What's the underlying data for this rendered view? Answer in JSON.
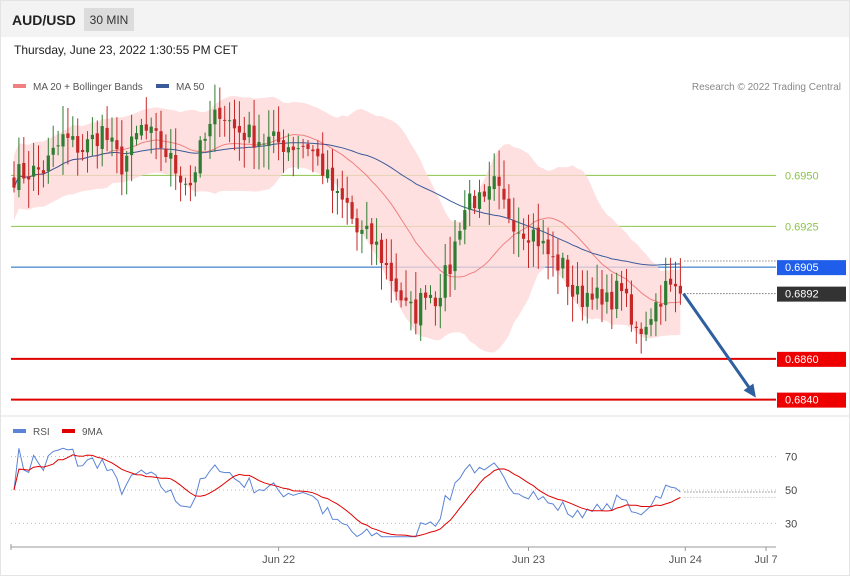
{
  "header": {
    "symbol": "AUD/USD",
    "timeframe": "30 MIN",
    "timestamp": "Thursday, June 23, 2022 1:30:55 PM CET"
  },
  "colors": {
    "candle_up": "#2e7d32",
    "candle_down": "#c62828",
    "bollinger_fill": "#ffd6d6",
    "ma20": "#f08080",
    "ma50": "#3a5a9a",
    "resistance": "#1565c0",
    "support": "#e00000",
    "pivot": "#8bc34a",
    "arrow": "#2f5f9f",
    "rsi": "#5b84d6",
    "rsi_ma": "#e00000"
  },
  "chart_data": [
    {
      "type": "candlestick",
      "legend": [
        {
          "name": "MA 20 + Bollinger Bands",
          "color": "#f08080"
        },
        {
          "name": "MA 50",
          "color": "#3a5a9a"
        }
      ],
      "legend_position": "top-left",
      "copyright": "Research © 2022 Trading Central",
      "ylim": [
        0.683,
        0.6987
      ],
      "x_ticks": [
        {
          "index": 54,
          "label": "Jun 22"
        },
        {
          "index": 105,
          "label": "Jun 23"
        },
        {
          "index": 137,
          "label": "Jun 24"
        },
        {
          "index": 152,
          "label": "Jul 7"
        }
      ],
      "levels": [
        {
          "value": 0.695,
          "label": "0.6950",
          "kind": "pivot"
        },
        {
          "value": 0.6925,
          "label": "0.6925",
          "kind": "pivot"
        },
        {
          "value": 0.6905,
          "label": "0.6905",
          "kind": "resistance"
        },
        {
          "value": 0.6892,
          "label": "0.6892",
          "kind": "last"
        },
        {
          "value": 0.686,
          "label": "0.6860",
          "kind": "support"
        },
        {
          "value": 0.684,
          "label": "0.6840",
          "kind": "support"
        }
      ],
      "projection": {
        "from": {
          "index": 136,
          "value": 0.6892
        },
        "to": {
          "index": 151,
          "value": 0.684
        }
      },
      "candle_count": 137,
      "price_keypoints": [
        [
          0,
          0.695
        ],
        [
          6,
          0.6953
        ],
        [
          10,
          0.6968
        ],
        [
          14,
          0.6963
        ],
        [
          18,
          0.6972
        ],
        [
          22,
          0.6955
        ],
        [
          26,
          0.6973
        ],
        [
          30,
          0.6965
        ],
        [
          33,
          0.6953
        ],
        [
          36,
          0.6946
        ],
        [
          38,
          0.6962
        ],
        [
          42,
          0.6983
        ],
        [
          45,
          0.6973
        ],
        [
          50,
          0.6968
        ],
        [
          56,
          0.6965
        ],
        [
          60,
          0.6965
        ],
        [
          62,
          0.6958
        ],
        [
          64,
          0.6948
        ],
        [
          66,
          0.6938
        ],
        [
          68,
          0.6935
        ],
        [
          70,
          0.6922
        ],
        [
          72,
          0.692
        ],
        [
          74,
          0.6915
        ],
        [
          77,
          0.69
        ],
        [
          80,
          0.6885
        ],
        [
          82,
          0.6882
        ],
        [
          84,
          0.6895
        ],
        [
          86,
          0.689
        ],
        [
          89,
          0.6905
        ],
        [
          91,
          0.6927
        ],
        [
          93,
          0.694
        ],
        [
          96,
          0.6935
        ],
        [
          98,
          0.6945
        ],
        [
          100,
          0.6935
        ],
        [
          103,
          0.6925
        ],
        [
          106,
          0.6922
        ],
        [
          108,
          0.6915
        ],
        [
          110,
          0.6908
        ],
        [
          112,
          0.6905
        ],
        [
          114,
          0.6892
        ],
        [
          116,
          0.689
        ],
        [
          118,
          0.6895
        ],
        [
          120,
          0.6885
        ],
        [
          122,
          0.689
        ],
        [
          124,
          0.6897
        ],
        [
          126,
          0.6876
        ],
        [
          127,
          0.6873
        ],
        [
          128,
          0.6875
        ],
        [
          131,
          0.6887
        ],
        [
          133,
          0.6895
        ],
        [
          136,
          0.6892
        ]
      ],
      "ma_windows": [
        20,
        50
      ],
      "bollinger_sigma": 2
    },
    {
      "type": "line",
      "legend": [
        {
          "name": "RSI",
          "color": "#5b84d6"
        },
        {
          "name": "9MA",
          "color": "#e00000"
        }
      ],
      "ylim": [
        20,
        77
      ],
      "y_ticks": [
        70,
        50,
        30
      ],
      "x_ticks": [
        {
          "index": 54,
          "label": "Jun 22"
        },
        {
          "index": 105,
          "label": "Jun 23"
        },
        {
          "index": 137,
          "label": "Jun 24"
        },
        {
          "index": 152,
          "label": "Jul 7"
        }
      ],
      "rsi_period": 14,
      "ma_window": 9
    }
  ]
}
